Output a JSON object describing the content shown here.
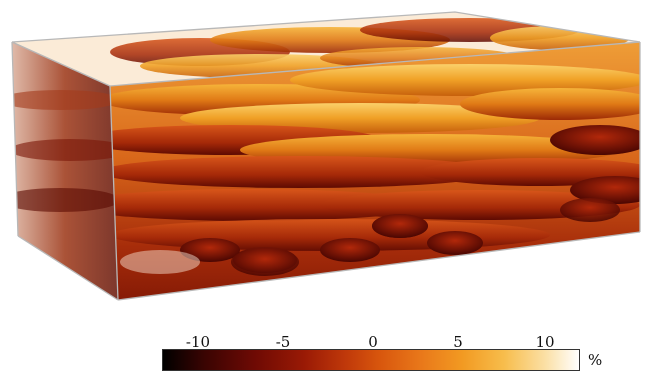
{
  "colorbar": {
    "ticks": [
      "-10",
      "-5",
      "0",
      "5",
      "10"
    ],
    "unit": "%",
    "colors": [
      "#000000",
      "#6e0a04",
      "#c0390a",
      "#f29a22",
      "#fbe0a6",
      "#ffffff"
    ]
  }
}
